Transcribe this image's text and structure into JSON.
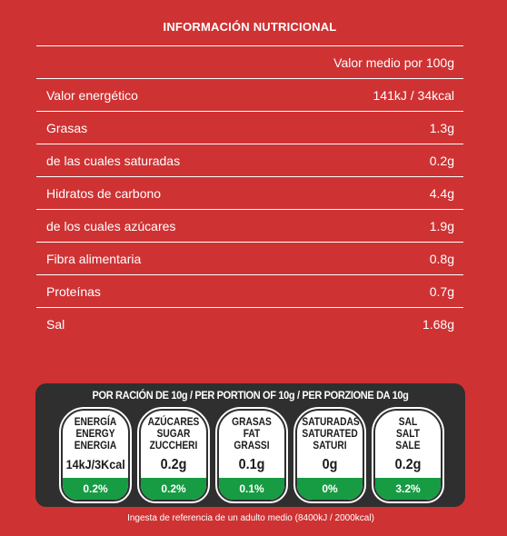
{
  "title": "INFORMACIÓN NUTRICIONAL",
  "header_value": "Valor medio por 100g",
  "rows": [
    {
      "label": "Valor energético",
      "value": "141kJ / 34kcal"
    },
    {
      "label": "Grasas",
      "value": "1.3g"
    },
    {
      "label": "de las cuales saturadas",
      "value": "0.2g"
    },
    {
      "label": "Hidratos de carbono",
      "value": "4.4g"
    },
    {
      "label": "de los cuales azúcares",
      "value": "1.9g"
    },
    {
      "label": "Fibra alimentaria",
      "value": "0.8g"
    },
    {
      "label": "Proteínas",
      "value": "0.7g"
    },
    {
      "label": "Sal",
      "value": "1.68g"
    }
  ],
  "portion_title": "POR RACIÓN DE 10g / PER PORTION OF 10g / PER PORZIONE DA 10g",
  "badges": [
    {
      "name1": "ENERGÍA",
      "name2": "ENERGY",
      "name3": "ENERGIA",
      "value": "14kJ/3Kcal",
      "pct": "0.2%"
    },
    {
      "name1": "AZÚCARES",
      "name2": "SUGAR",
      "name3": "ZUCCHERI",
      "value": "0.2g",
      "pct": "0.2%"
    },
    {
      "name1": "GRASAS",
      "name2": "FAT",
      "name3": "GRASSI",
      "value": "0.1g",
      "pct": "0.1%"
    },
    {
      "name1": "SATURADAS",
      "name2": "SATURATED",
      "name3": "SATURI",
      "value": "0g",
      "pct": "0%"
    },
    {
      "name1": "SAL",
      "name2": "SALT",
      "name3": "SALE",
      "value": "0.2g",
      "pct": "3.2%"
    }
  ],
  "footer": "Ingesta de referencia de un adulto medio (8400kJ / 2000kcal)",
  "colors": {
    "background": "#cf3233",
    "panel": "#2f2f2f",
    "badge_green": "#179b43"
  }
}
